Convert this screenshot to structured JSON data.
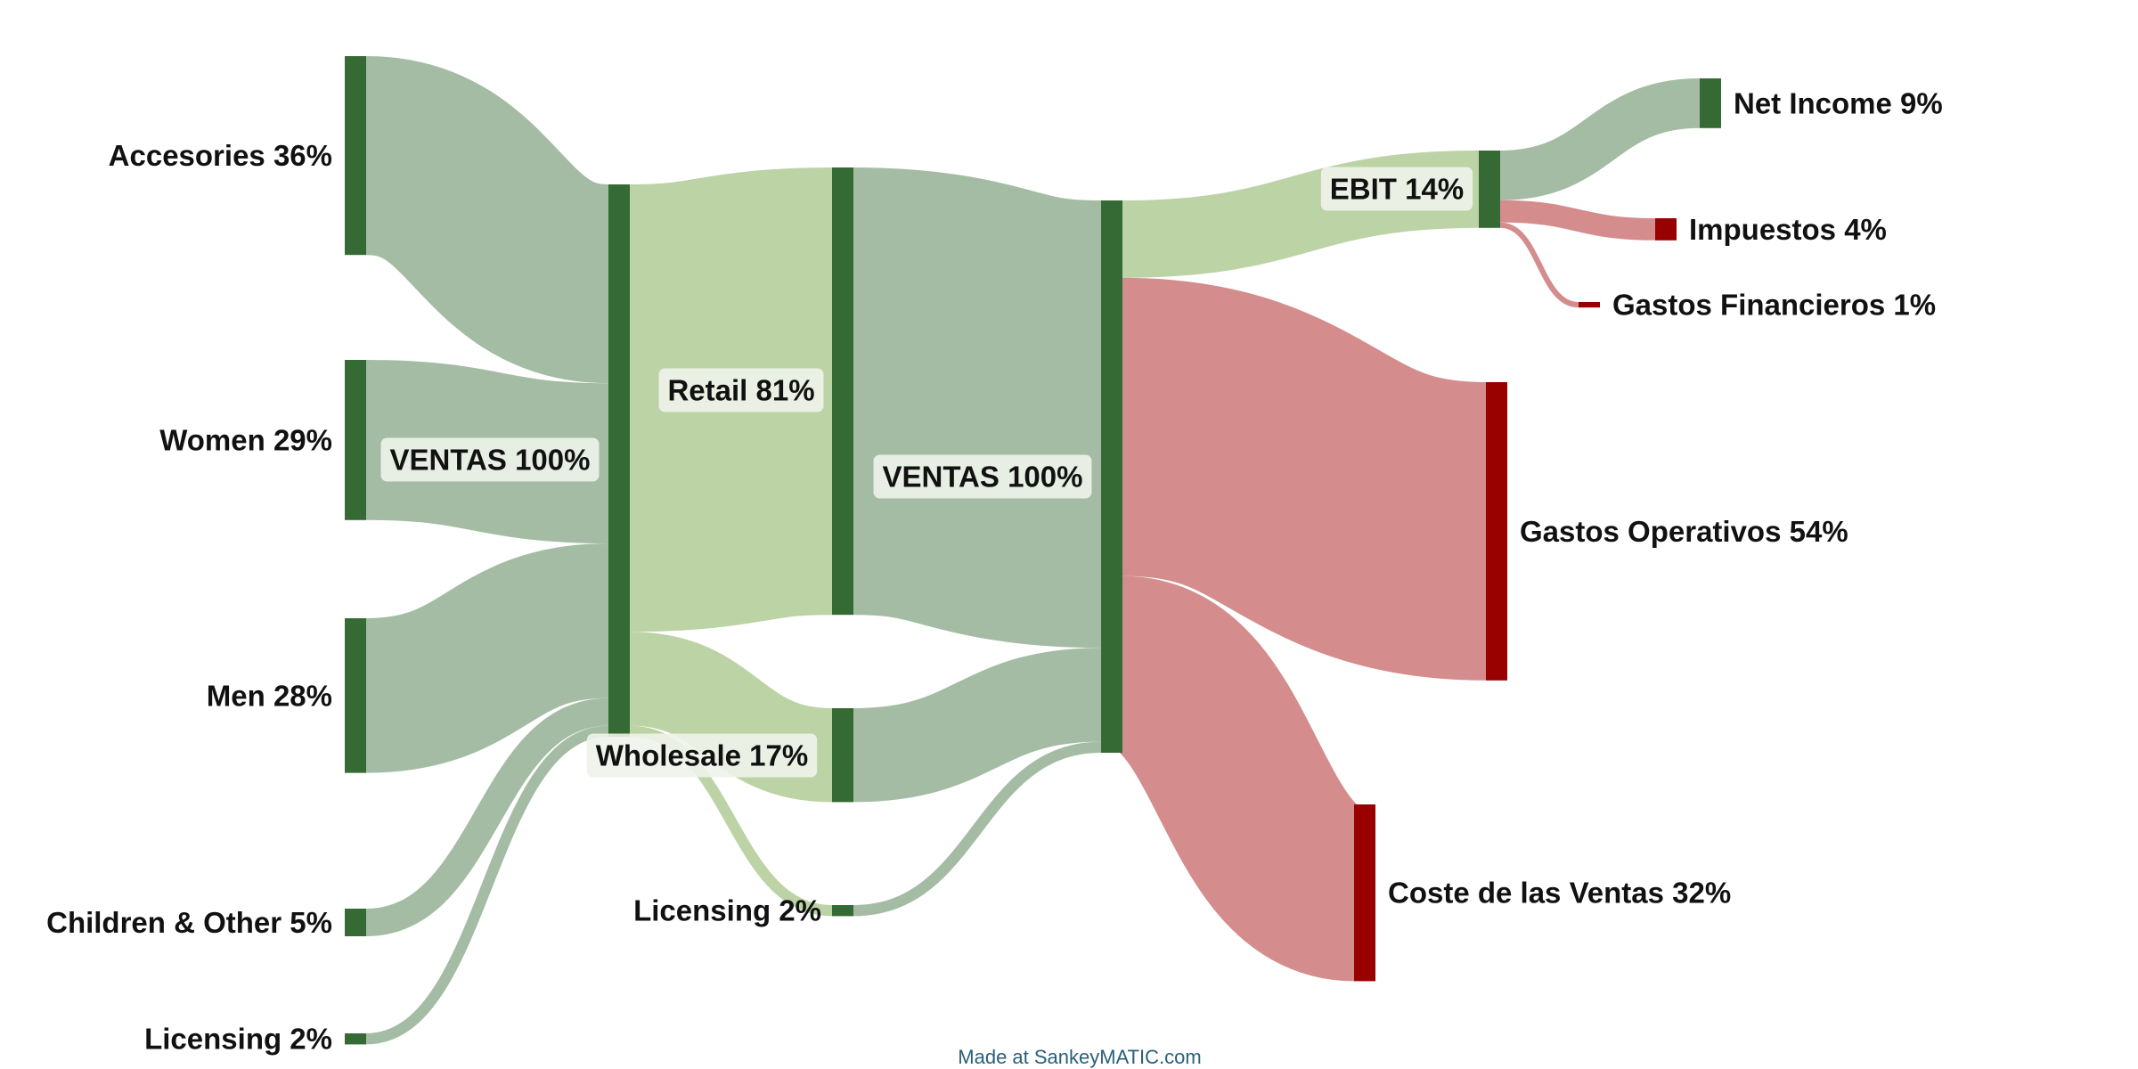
{
  "credit": "Made at SankeyMATIC.com",
  "colors": {
    "node_green": "#356a35",
    "node_red": "#990000",
    "flow_gray_green": "#a3bca3",
    "flow_light_green": "#bcd3a5",
    "flow_red": "#d48c8c",
    "label_box": "#eef3ea"
  },
  "chart_data": {
    "type": "sankey",
    "nodes": [
      {
        "id": "accesories",
        "label": "Accesories 36%",
        "value": 36
      },
      {
        "id": "women",
        "label": "Women 29%",
        "value": 29
      },
      {
        "id": "men",
        "label": "Men 28%",
        "value": 28
      },
      {
        "id": "children",
        "label": "Children & Other 5%",
        "value": 5
      },
      {
        "id": "licensing_in",
        "label": "Licensing 2%",
        "value": 2
      },
      {
        "id": "ventas1",
        "label": "VENTAS 100%",
        "value": 100
      },
      {
        "id": "retail",
        "label": "Retail 81%",
        "value": 81
      },
      {
        "id": "wholesale",
        "label": "Wholesale 17%",
        "value": 17
      },
      {
        "id": "licensing_mid",
        "label": "Licensing 2%",
        "value": 2
      },
      {
        "id": "ventas2",
        "label": "VENTAS 100%",
        "value": 100
      },
      {
        "id": "ebit",
        "label": "EBIT 14%",
        "value": 14
      },
      {
        "id": "gastos_op",
        "label": "Gastos Operativos 54%",
        "value": 54
      },
      {
        "id": "coste",
        "label": "Coste de las Ventas 32%",
        "value": 32
      },
      {
        "id": "net_income",
        "label": "Net Income 9%",
        "value": 9
      },
      {
        "id": "impuestos",
        "label": "Impuestos 4%",
        "value": 4
      },
      {
        "id": "gastos_fin",
        "label": "Gastos Financieros 1%",
        "value": 1
      }
    ],
    "links": [
      {
        "from": "accesories",
        "to": "ventas1",
        "value": 36
      },
      {
        "from": "women",
        "to": "ventas1",
        "value": 29
      },
      {
        "from": "men",
        "to": "ventas1",
        "value": 28
      },
      {
        "from": "children",
        "to": "ventas1",
        "value": 5
      },
      {
        "from": "licensing_in",
        "to": "ventas1",
        "value": 2
      },
      {
        "from": "ventas1",
        "to": "retail",
        "value": 81
      },
      {
        "from": "ventas1",
        "to": "wholesale",
        "value": 17
      },
      {
        "from": "ventas1",
        "to": "licensing_mid",
        "value": 2
      },
      {
        "from": "retail",
        "to": "ventas2",
        "value": 81
      },
      {
        "from": "wholesale",
        "to": "ventas2",
        "value": 17
      },
      {
        "from": "licensing_mid",
        "to": "ventas2",
        "value": 2
      },
      {
        "from": "ventas2",
        "to": "ebit",
        "value": 14
      },
      {
        "from": "ventas2",
        "to": "gastos_op",
        "value": 54
      },
      {
        "from": "ventas2",
        "to": "coste",
        "value": 32
      },
      {
        "from": "ebit",
        "to": "net_income",
        "value": 9
      },
      {
        "from": "ebit",
        "to": "impuestos",
        "value": 4
      },
      {
        "from": "ebit",
        "to": "gastos_fin",
        "value": 1
      }
    ]
  }
}
